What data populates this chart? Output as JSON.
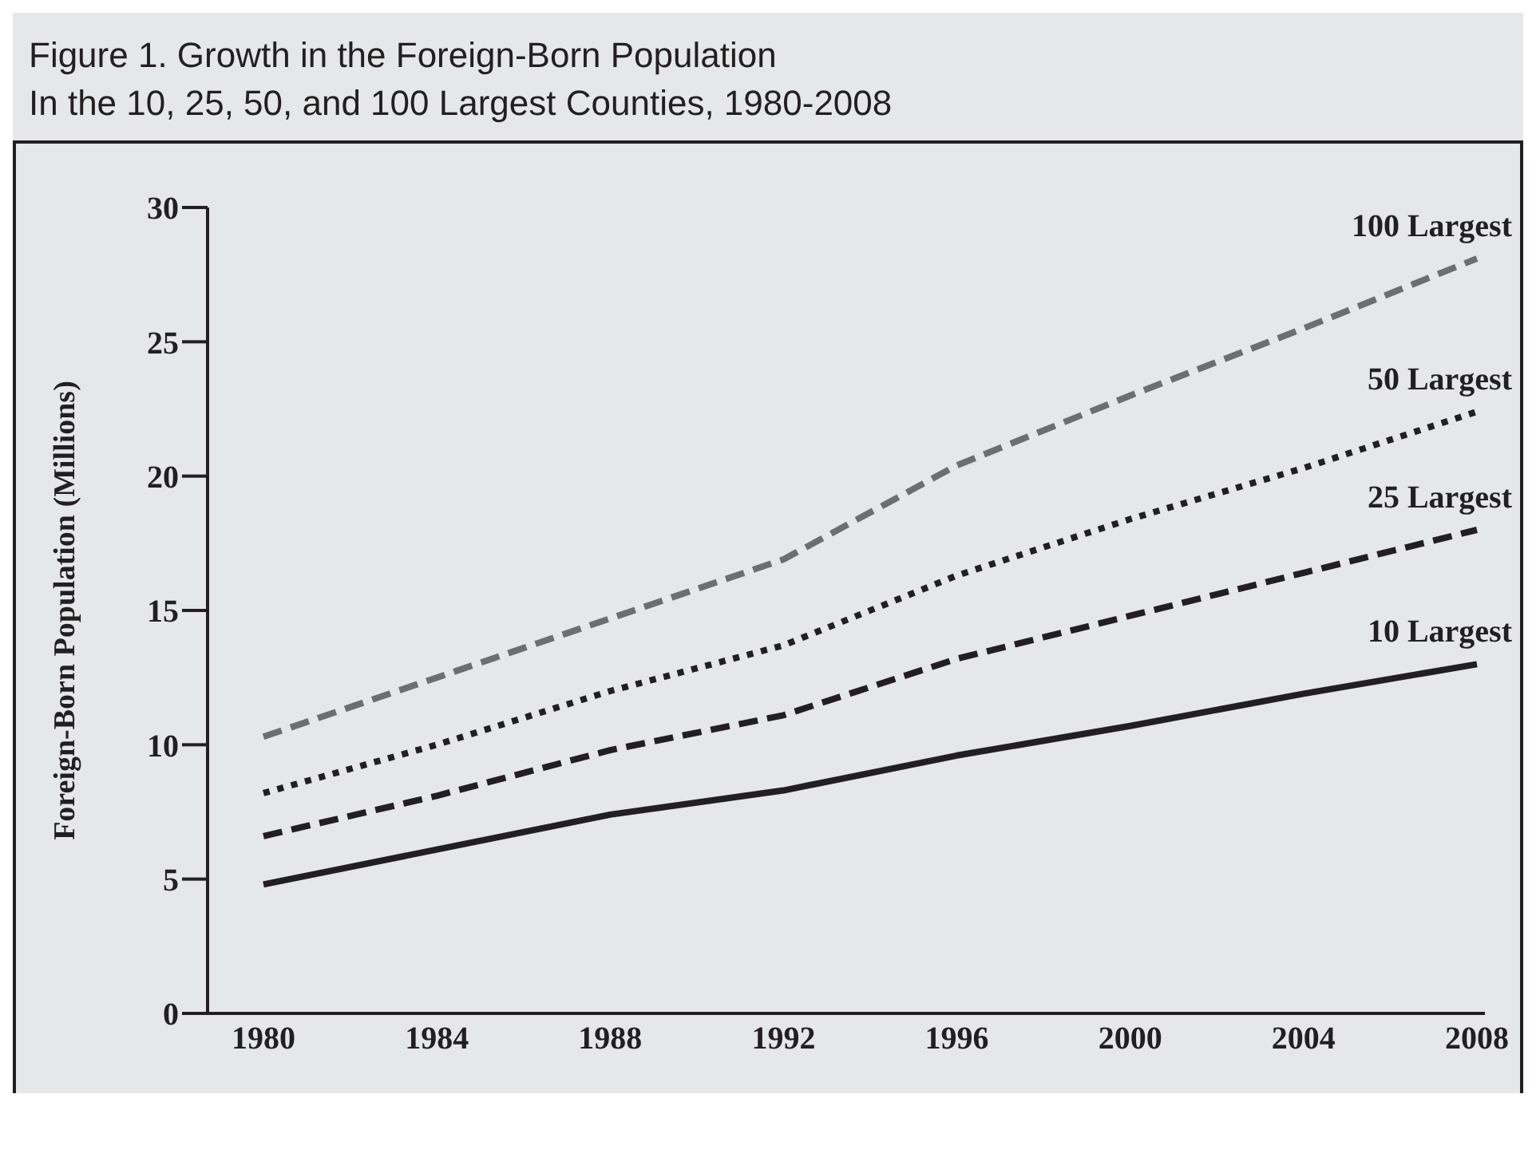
{
  "chart_data": {
    "type": "line",
    "title": "Figure 1. Growth in the Foreign-Born Population",
    "subtitle": "In the 10, 25, 50, and 100 Largest Counties, 1980-2008",
    "ylabel": "Foreign-Born Population (Millions)",
    "categories": [
      "1980",
      "1984",
      "1988",
      "1992",
      "1996",
      "2000",
      "2004",
      "2008"
    ],
    "ylim": [
      0,
      30
    ],
    "yticks": [
      0,
      5,
      10,
      15,
      20,
      25,
      30
    ],
    "legend": false,
    "marker": "none",
    "series": [
      {
        "name": "100 Largest",
        "color": "#6d6e70",
        "line_style": "dashed",
        "values": [
          10.3,
          12.5,
          14.7,
          16.9,
          20.4,
          23.0,
          25.5,
          28.1
        ]
      },
      {
        "name": "50 Largest",
        "color": "#231f20",
        "line_style": "dotted",
        "values": [
          8.2,
          10.0,
          12.0,
          13.7,
          16.3,
          18.4,
          20.3,
          22.4
        ]
      },
      {
        "name": "25 Largest",
        "color": "#231f20",
        "line_style": "dashed",
        "values": [
          6.6,
          8.1,
          9.8,
          11.1,
          13.2,
          14.8,
          16.4,
          18.0
        ]
      },
      {
        "name": "10 Largest",
        "color": "#231f20",
        "line_style": "solid",
        "values": [
          4.8,
          6.1,
          7.4,
          8.3,
          9.6,
          10.7,
          11.9,
          13.0
        ]
      }
    ]
  }
}
